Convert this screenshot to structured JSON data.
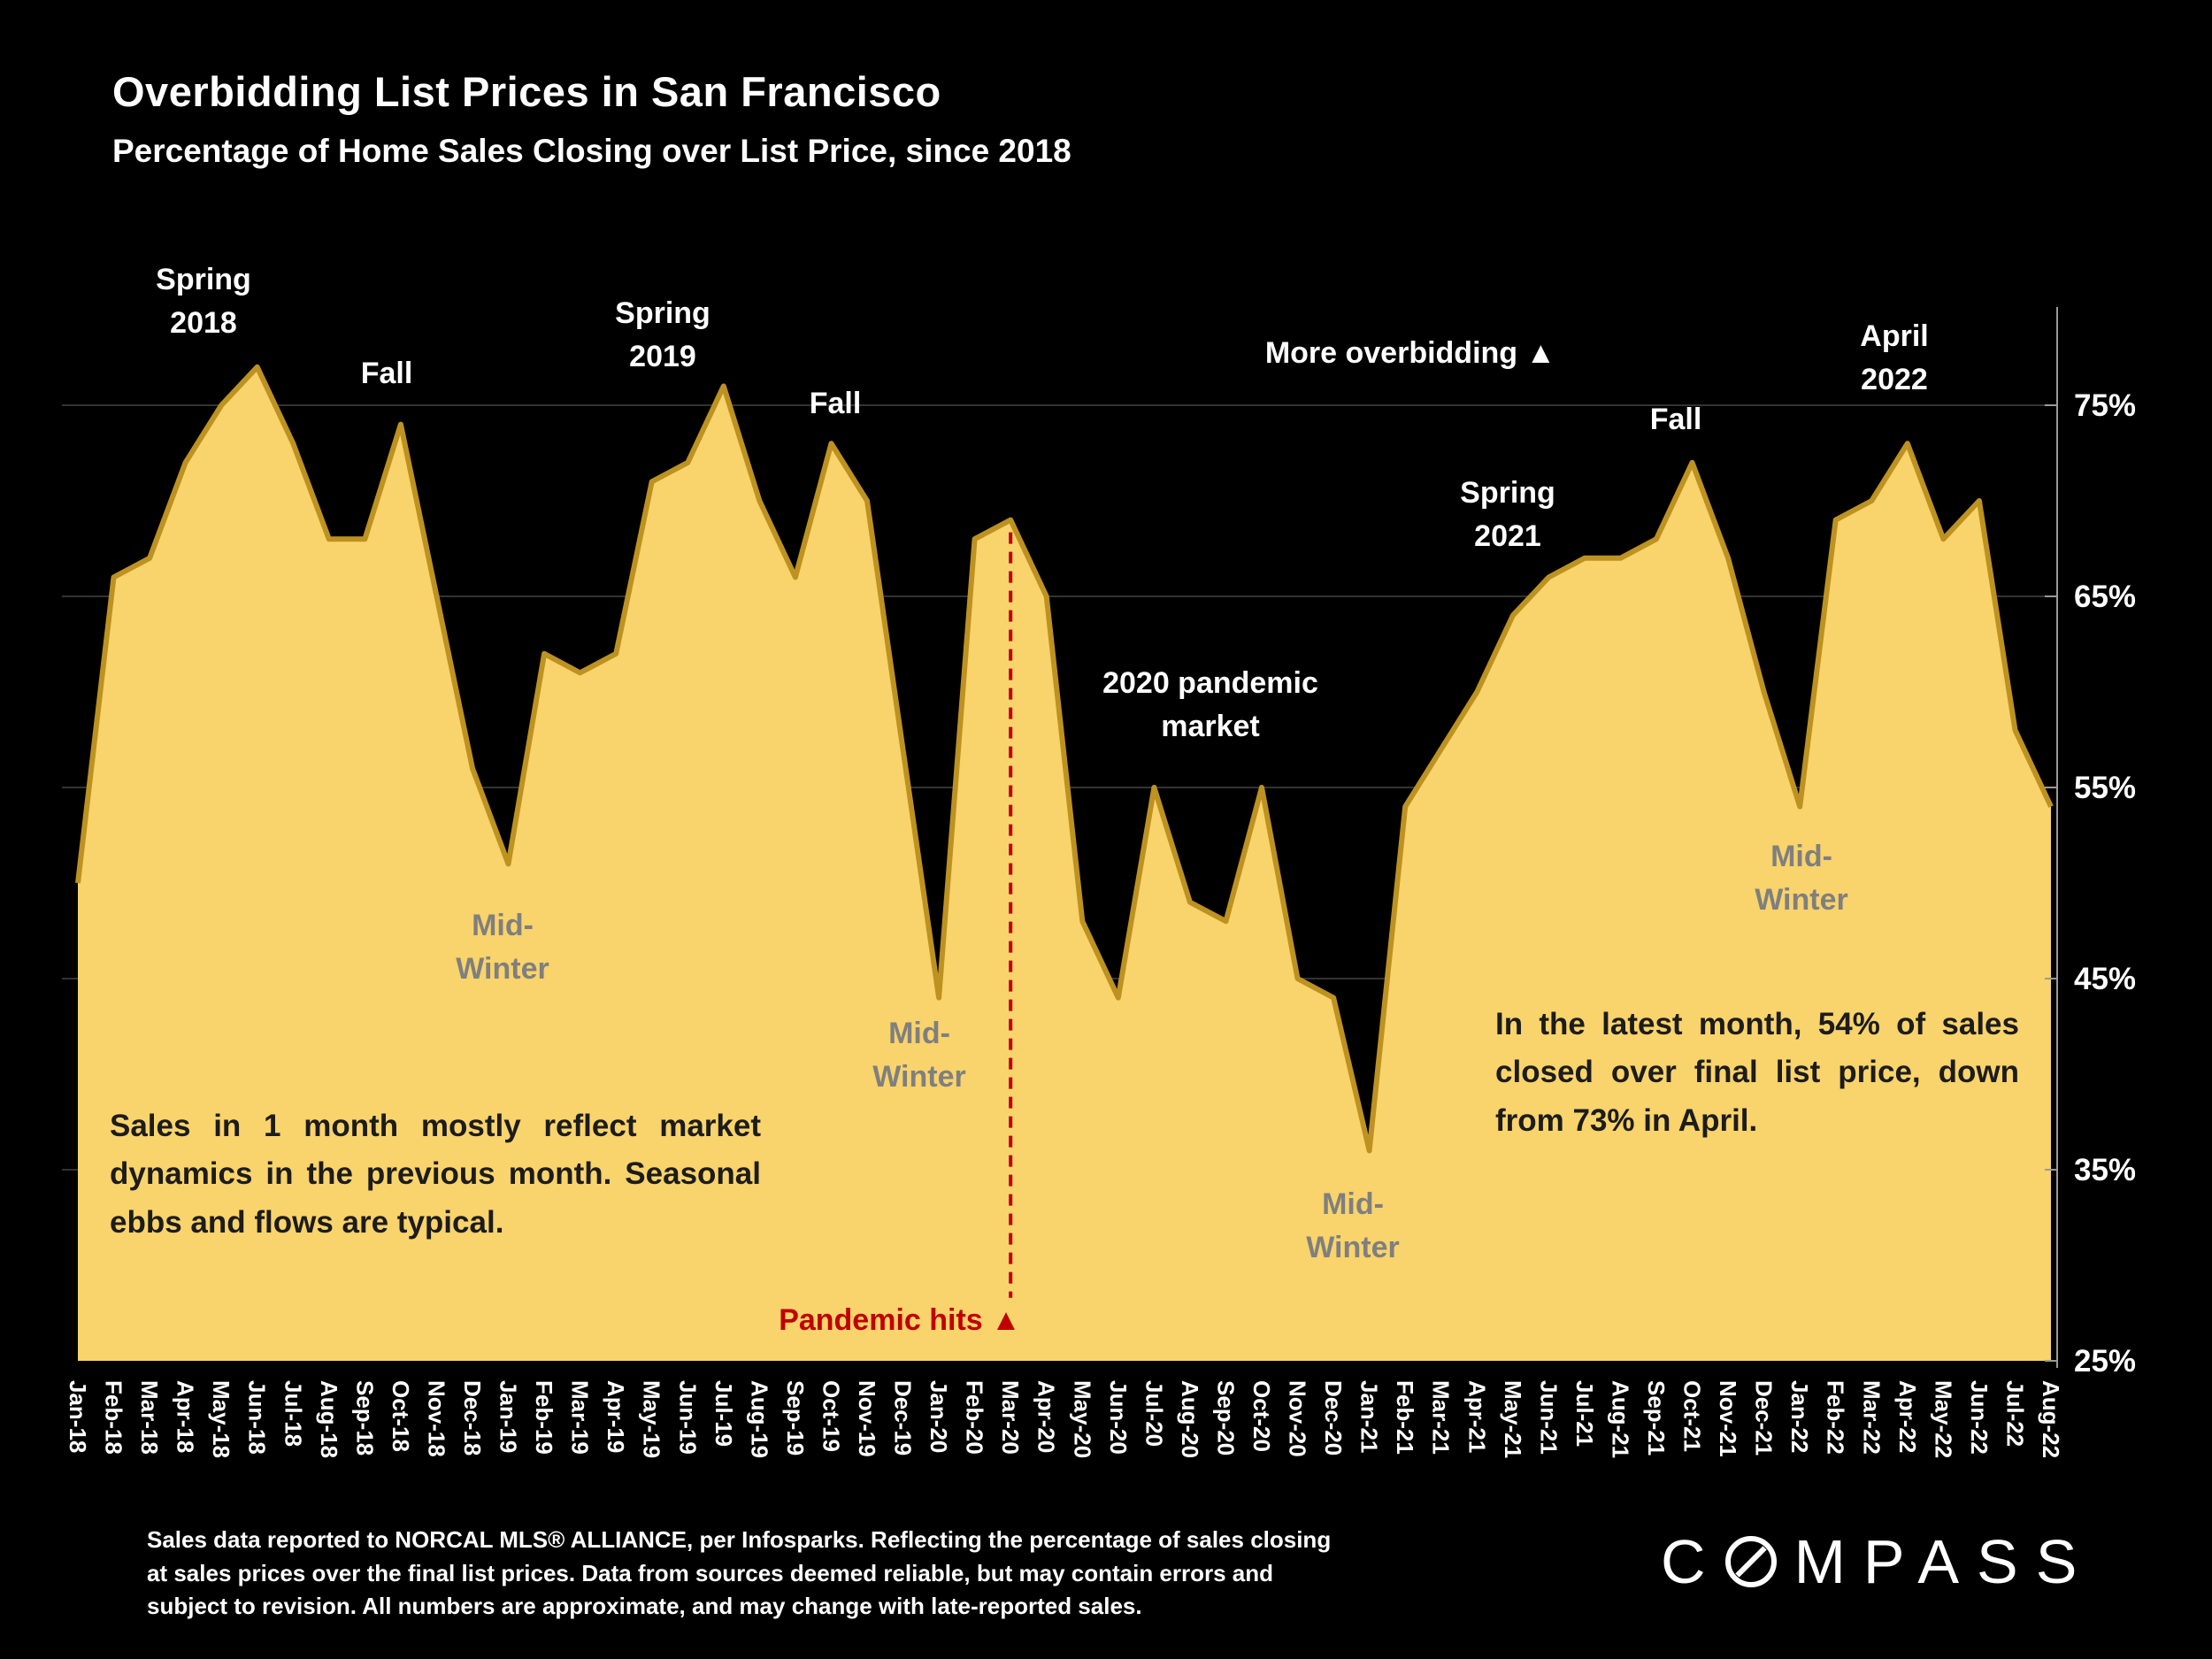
{
  "chart_data": {
    "type": "area",
    "title": "Overbidding List Prices in San Francisco",
    "subtitle": "Percentage of Home Sales Closing over List Price, since 2018",
    "xlabel": "",
    "ylabel": "",
    "ylim": [
      25,
      80
    ],
    "yticks": [
      25,
      35,
      45,
      55,
      65,
      75
    ],
    "ytick_suffix": "%",
    "grid": "horizontal",
    "legend": "none",
    "pandemic_month": "Mar-20",
    "colors": {
      "area": "#F9D36B",
      "line": "#BD9220",
      "grid": "#333333",
      "red": "#C00000",
      "axis": "#9a9a9a"
    },
    "x": [
      "Jan-18",
      "Feb-18",
      "Mar-18",
      "Apr-18",
      "May-18",
      "Jun-18",
      "Jul-18",
      "Aug-18",
      "Sep-18",
      "Oct-18",
      "Nov-18",
      "Dec-18",
      "Jan-19",
      "Feb-19",
      "Mar-19",
      "Apr-19",
      "May-19",
      "Jun-19",
      "Jul-19",
      "Aug-19",
      "Sep-19",
      "Oct-19",
      "Nov-19",
      "Dec-19",
      "Jan-20",
      "Feb-20",
      "Mar-20",
      "Apr-20",
      "May-20",
      "Jun-20",
      "Jul-20",
      "Aug-20",
      "Sep-20",
      "Oct-20",
      "Nov-20",
      "Dec-20",
      "Jan-21",
      "Feb-21",
      "Mar-21",
      "Apr-21",
      "May-21",
      "Jun-21",
      "Jul-21",
      "Aug-21",
      "Sep-21",
      "Oct-21",
      "Nov-21",
      "Dec-21",
      "Jan-22",
      "Feb-22",
      "Mar-22",
      "Apr-22",
      "May-22",
      "Jun-22",
      "Jul-22",
      "Aug-22"
    ],
    "values": [
      50,
      66,
      67,
      72,
      75,
      77,
      73,
      68,
      68,
      74,
      65,
      56,
      51,
      62,
      61,
      62,
      71,
      72,
      76,
      70,
      66,
      73,
      70,
      57,
      44,
      68,
      69,
      65,
      48,
      44,
      55,
      49,
      48,
      55,
      45,
      44,
      36,
      54,
      57,
      60,
      64,
      66,
      67,
      67,
      68,
      72,
      67,
      60,
      54,
      69,
      70,
      73,
      68,
      70,
      58,
      54
    ]
  },
  "annotations": {
    "spring_2018": "Spring\n2018",
    "fall_2018": "Fall",
    "spring_2019": "Spring\n2019",
    "fall_2019": "Fall",
    "mid_winter_2019": "Mid-\nWinter",
    "mid_winter_2020": "Mid-\nWinter",
    "pandemic_hits": "Pandemic hits ▲",
    "pandemic_market": "2020 pandemic\nmarket",
    "more_overbidding": "More overbidding ▲",
    "mid_winter_2021": "Mid-\nWinter",
    "spring_2021": "Spring\n2021",
    "fall_2021": "Fall",
    "mid_winter_2022": "Mid-\nWinter",
    "april_2022": "April\n2022",
    "note_left": "Sales in 1 month mostly reflect market dynamics in the previous month. Seasonal ebbs and flows are typical.",
    "note_right": "In the latest month, 54% of sales closed over final list price, down from 73% in April."
  },
  "footnote": "Sales data reported to NORCAL MLS® ALLIANCE, per Infosparks. Reflecting the percentage of sales closing\nat sales prices over the final list prices. Data from sources deemed reliable, but may contain errors and\nsubject to revision. All numbers are approximate, and may change with late-reported sales.",
  "logo": {
    "c": "C",
    "mpass": "MPASS"
  }
}
